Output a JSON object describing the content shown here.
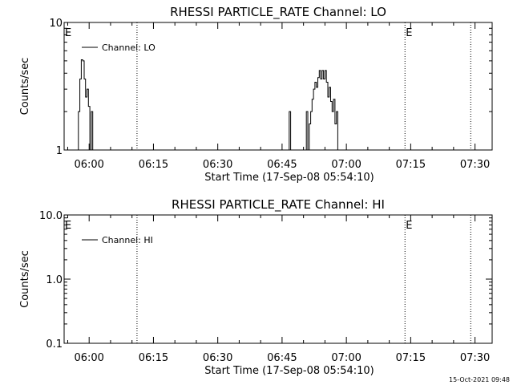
{
  "chart_data": [
    {
      "type": "line",
      "title": "RHESSI PARTICLE_RATE Channel: LO",
      "xlabel": "Start Time (17-Sep-08 05:54:10)",
      "ylabel": "Counts/sec",
      "yscale": "log",
      "ylim": [
        1,
        10
      ],
      "y_ticks": [
        "1",
        "10"
      ],
      "xlim": [
        "05:54:10",
        "07:34:00"
      ],
      "x_ticks": [
        "06:00",
        "06:15",
        "06:30",
        "06:45",
        "07:00",
        "07:15",
        "07:30"
      ],
      "legend": {
        "label": "Channel: LO",
        "position": "top-left"
      },
      "markers": [
        {
          "time": "05:54:10",
          "dotted": false,
          "label": "E"
        },
        {
          "time": "06:11:10",
          "dotted": true,
          "label": ""
        },
        {
          "time": "07:13:40",
          "dotted": true,
          "label": "E"
        },
        {
          "time": "07:29:00",
          "dotted": true,
          "label": ""
        }
      ],
      "series": [
        {
          "name": "Channel: LO",
          "points": [
            [
              "05:57:10",
              1
            ],
            [
              "05:57:30",
              2
            ],
            [
              "05:57:50",
              3.6
            ],
            [
              "05:58:10",
              5.1
            ],
            [
              "05:58:30",
              5.0
            ],
            [
              "05:58:50",
              3.6
            ],
            [
              "05:59:10",
              2.6
            ],
            [
              "05:59:30",
              3.0
            ],
            [
              "05:59:50",
              2.2
            ],
            [
              "06:00:10",
              1
            ],
            [
              "06:00:30",
              2.0
            ],
            [
              "06:00:50",
              1
            ],
            [
              "06:46:20",
              1
            ],
            [
              "06:46:40",
              2.0
            ],
            [
              "06:47:00",
              1
            ],
            [
              "06:50:20",
              1
            ],
            [
              "06:50:40",
              2.0
            ],
            [
              "06:51:00",
              1
            ],
            [
              "06:51:20",
              1.6
            ],
            [
              "06:51:40",
              2.0
            ],
            [
              "06:52:00",
              2.5
            ],
            [
              "06:52:20",
              3.0
            ],
            [
              "06:52:40",
              3.4
            ],
            [
              "06:53:00",
              3.1
            ],
            [
              "06:53:20",
              3.7
            ],
            [
              "06:53:40",
              4.2
            ],
            [
              "06:54:00",
              3.6
            ],
            [
              "06:54:20",
              4.2
            ],
            [
              "06:54:40",
              3.6
            ],
            [
              "06:55:00",
              4.2
            ],
            [
              "06:55:20",
              3.4
            ],
            [
              "06:55:40",
              2.6
            ],
            [
              "06:56:00",
              3.1
            ],
            [
              "06:56:20",
              2.4
            ],
            [
              "06:56:40",
              2.0
            ],
            [
              "06:57:00",
              2.5
            ],
            [
              "06:57:20",
              1.6
            ],
            [
              "06:57:40",
              2.0
            ],
            [
              "06:58:00",
              1
            ]
          ]
        }
      ]
    },
    {
      "type": "line",
      "title": "RHESSI PARTICLE_RATE Channel: HI",
      "xlabel": "Start Time (17-Sep-08 05:54:10)",
      "ylabel": "Counts/sec",
      "yscale": "log",
      "ylim": [
        0.1,
        10
      ],
      "y_ticks": [
        "0.1",
        "1.0",
        "10.0"
      ],
      "xlim": [
        "05:54:10",
        "07:34:00"
      ],
      "x_ticks": [
        "06:00",
        "06:15",
        "06:30",
        "06:45",
        "07:00",
        "07:15",
        "07:30"
      ],
      "legend": {
        "label": "Channel: HI",
        "position": "top-left"
      },
      "markers": [
        {
          "time": "05:54:10",
          "dotted": false,
          "label": "E"
        },
        {
          "time": "06:11:10",
          "dotted": true,
          "label": ""
        },
        {
          "time": "07:13:40",
          "dotted": true,
          "label": "E"
        },
        {
          "time": "07:29:00",
          "dotted": true,
          "label": ""
        }
      ],
      "series": [
        {
          "name": "Channel: HI",
          "points": []
        }
      ]
    }
  ],
  "footer": {
    "timestamp": "15-Oct-2021 09:48"
  }
}
